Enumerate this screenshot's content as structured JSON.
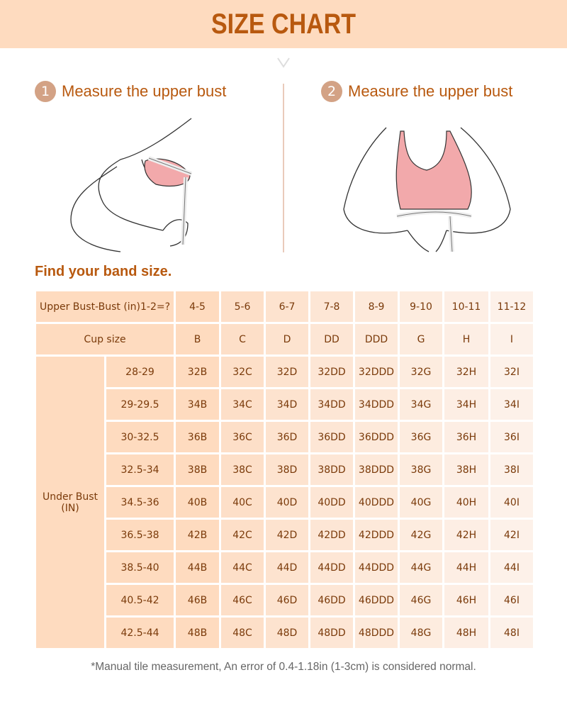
{
  "header": {
    "title": "SIZE CHART"
  },
  "steps": [
    {
      "number": "1",
      "label": "Measure the upper bust"
    },
    {
      "number": "2",
      "label": "Measure the upper bust"
    }
  ],
  "subtitle": "Find your band size.",
  "table": {
    "difference_label": "Upper Bust-Bust (in)1-2=?",
    "differences": [
      "4-5",
      "5-6",
      "6-7",
      "7-8",
      "8-9",
      "9-10",
      "10-11",
      "11-12"
    ],
    "cup_label": "Cup size",
    "cups": [
      "B",
      "C",
      "D",
      "DD",
      "DDD",
      "G",
      "H",
      "I"
    ],
    "under_bust_label": "Under Bust (IN)",
    "rows": [
      {
        "band": "28-29",
        "sizes": [
          "32B",
          "32C",
          "32D",
          "32DD",
          "32DDD",
          "32G",
          "32H",
          "32I"
        ]
      },
      {
        "band": "29-29.5",
        "sizes": [
          "34B",
          "34C",
          "34D",
          "34DD",
          "34DDD",
          "34G",
          "34H",
          "34I"
        ]
      },
      {
        "band": "30-32.5",
        "sizes": [
          "36B",
          "36C",
          "36D",
          "36DD",
          "36DDD",
          "36G",
          "36H",
          "36I"
        ]
      },
      {
        "band": "32.5-34",
        "sizes": [
          "38B",
          "38C",
          "38D",
          "38DD",
          "38DDD",
          "38G",
          "38H",
          "38I"
        ]
      },
      {
        "band": "34.5-36",
        "sizes": [
          "40B",
          "40C",
          "40D",
          "40DD",
          "40DDD",
          "40G",
          "40H",
          "40I"
        ]
      },
      {
        "band": "36.5-38",
        "sizes": [
          "42B",
          "42C",
          "42D",
          "42DD",
          "42DDD",
          "42G",
          "42H",
          "42I"
        ]
      },
      {
        "band": "38.5-40",
        "sizes": [
          "44B",
          "44C",
          "44D",
          "44DD",
          "44DDD",
          "44G",
          "44H",
          "44I"
        ]
      },
      {
        "band": "40.5-42",
        "sizes": [
          "46B",
          "46C",
          "46D",
          "46DD",
          "46DDD",
          "46G",
          "46H",
          "46I"
        ]
      },
      {
        "band": "42.5-44",
        "sizes": [
          "48B",
          "48C",
          "48D",
          "48DD",
          "48DDD",
          "48G",
          "48H",
          "48I"
        ]
      }
    ]
  },
  "footnote": "*Manual tile measurement, An error of 0.4-1.18in (1-3cm) is considered normal.",
  "colors": {
    "banner": "#fedbbf",
    "accent": "#b8590f",
    "badge": "#d3a285",
    "bra": "#f2a9ab"
  }
}
